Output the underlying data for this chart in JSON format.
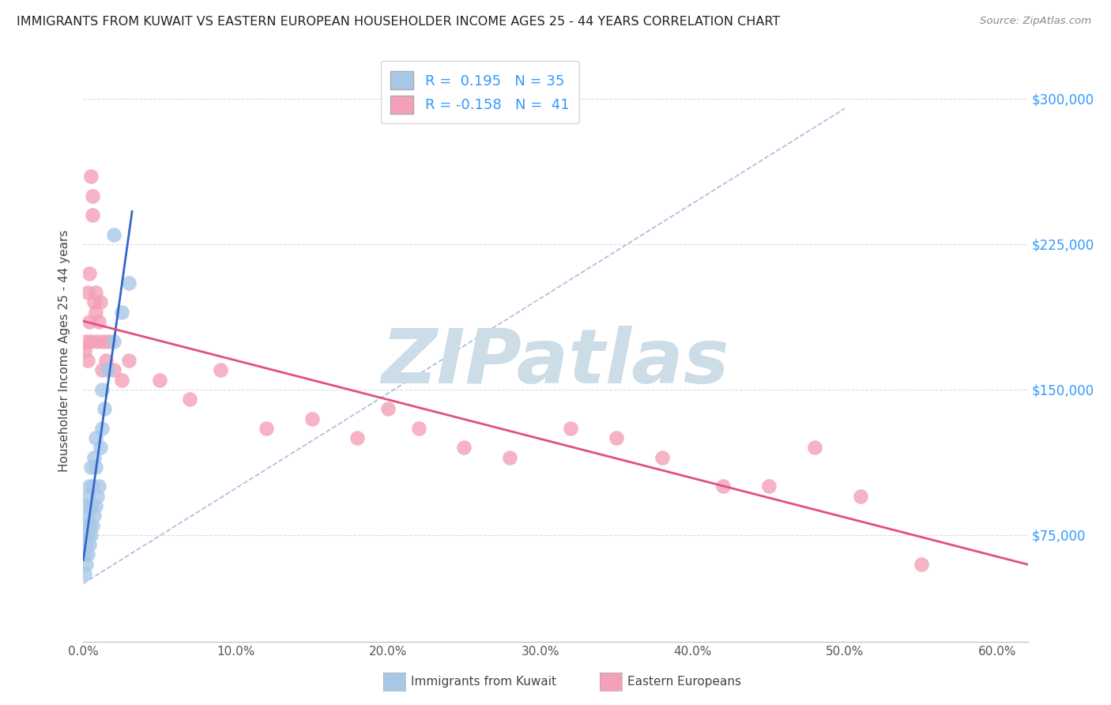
{
  "title": "IMMIGRANTS FROM KUWAIT VS EASTERN EUROPEAN HOUSEHOLDER INCOME AGES 25 - 44 YEARS CORRELATION CHART",
  "source": "Source: ZipAtlas.com",
  "ylabel": "Householder Income Ages 25 - 44 years",
  "xlim": [
    0.0,
    0.62
  ],
  "ylim": [
    20000,
    320000
  ],
  "xtick_values": [
    0.0,
    0.1,
    0.2,
    0.3,
    0.4,
    0.5,
    0.6
  ],
  "xtick_labels": [
    "0.0%",
    "10.0%",
    "20.0%",
    "30.0%",
    "40.0%",
    "50.0%",
    "60.0%"
  ],
  "ytick_values": [
    75000,
    150000,
    225000,
    300000
  ],
  "ytick_labels": [
    "$75,000",
    "$150,000",
    "$225,000",
    "$300,000"
  ],
  "blue_R": "0.195",
  "blue_N": "35",
  "pink_R": "-0.158",
  "pink_N": "41",
  "blue_color": "#a8c8e8",
  "pink_color": "#f4a0b8",
  "blue_line_color": "#3366cc",
  "pink_line_color": "#e05080",
  "dashed_line_color": "#aabbdd",
  "blue_scatter_x": [
    0.001,
    0.001,
    0.001,
    0.002,
    0.002,
    0.002,
    0.002,
    0.003,
    0.003,
    0.003,
    0.003,
    0.004,
    0.004,
    0.004,
    0.005,
    0.005,
    0.005,
    0.006,
    0.006,
    0.007,
    0.007,
    0.008,
    0.008,
    0.009,
    0.01,
    0.011,
    0.012,
    0.014,
    0.016,
    0.02,
    0.025,
    0.03,
    0.02,
    0.012,
    0.008
  ],
  "blue_scatter_y": [
    55000,
    65000,
    75000,
    60000,
    70000,
    80000,
    90000,
    65000,
    75000,
    85000,
    95000,
    70000,
    80000,
    100000,
    75000,
    90000,
    110000,
    80000,
    100000,
    85000,
    115000,
    90000,
    110000,
    95000,
    100000,
    120000,
    130000,
    140000,
    160000,
    175000,
    190000,
    205000,
    230000,
    150000,
    125000
  ],
  "pink_scatter_x": [
    0.001,
    0.002,
    0.003,
    0.003,
    0.004,
    0.004,
    0.005,
    0.005,
    0.006,
    0.006,
    0.007,
    0.008,
    0.008,
    0.009,
    0.01,
    0.011,
    0.012,
    0.013,
    0.015,
    0.017,
    0.02,
    0.025,
    0.03,
    0.05,
    0.07,
    0.09,
    0.12,
    0.15,
    0.18,
    0.2,
    0.22,
    0.25,
    0.28,
    0.32,
    0.35,
    0.38,
    0.42,
    0.45,
    0.48,
    0.51,
    0.55
  ],
  "pink_scatter_y": [
    170000,
    175000,
    165000,
    200000,
    185000,
    210000,
    175000,
    260000,
    250000,
    240000,
    195000,
    190000,
    200000,
    175000,
    185000,
    195000,
    160000,
    175000,
    165000,
    175000,
    160000,
    155000,
    165000,
    155000,
    145000,
    160000,
    130000,
    135000,
    125000,
    140000,
    130000,
    120000,
    115000,
    130000,
    125000,
    115000,
    100000,
    100000,
    120000,
    95000,
    60000
  ],
  "watermark": "ZIPatlas",
  "watermark_color": "#ccdde8",
  "legend_label_blue": "Immigrants from Kuwait",
  "legend_label_pink": "Eastern Europeans",
  "background_color": "#ffffff",
  "grid_color": "#dddddd",
  "right_axis_color": "#3399ff"
}
